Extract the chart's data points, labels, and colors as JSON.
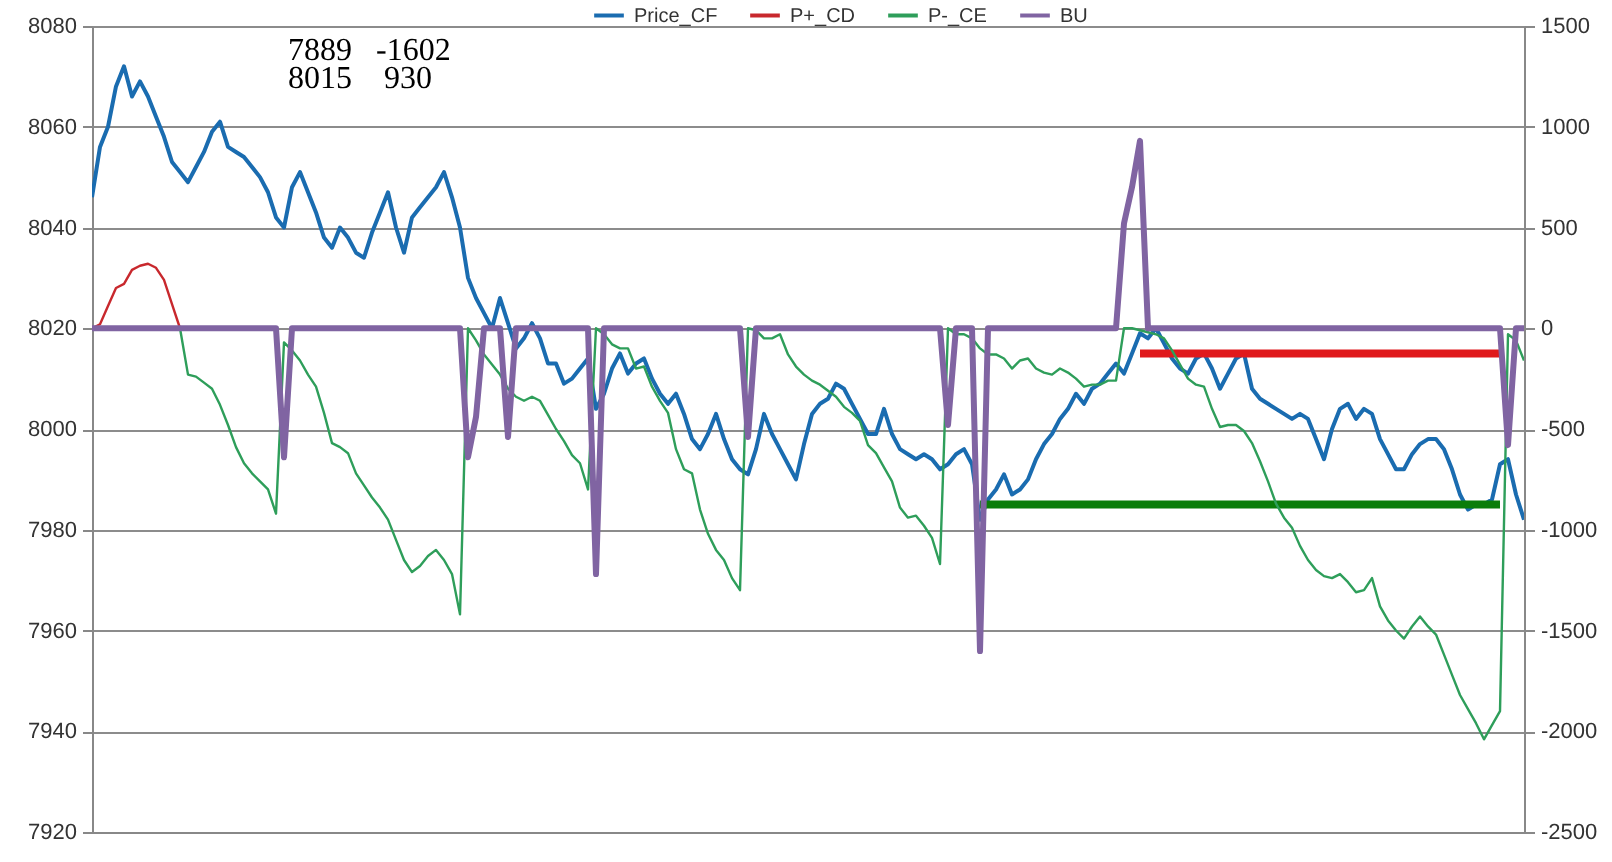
{
  "chart_data": {
    "type": "line",
    "categories": [
      null,
      null,
      null,
      null,
      null,
      null,
      null,
      null,
      null,
      null,
      null,
      null,
      null,
      null,
      null,
      null,
      null,
      null,
      null,
      null,
      null,
      null,
      null,
      null,
      null,
      null,
      null,
      null,
      null,
      null,
      null,
      null,
      null,
      null,
      null,
      null,
      null,
      null,
      null,
      null,
      null,
      null,
      null,
      null,
      null,
      null,
      null,
      null,
      null,
      null,
      null,
      null,
      null,
      null,
      null,
      null,
      null,
      null,
      null,
      null,
      null,
      null,
      null,
      null,
      null,
      null,
      null,
      null,
      null,
      null,
      null,
      null,
      null,
      null,
      null,
      null,
      null,
      null,
      null,
      null,
      null,
      null,
      null,
      null,
      null,
      null,
      null,
      null,
      null,
      null,
      null,
      null,
      null,
      null,
      null,
      null,
      null,
      null,
      null,
      null,
      null,
      null,
      null,
      null,
      null,
      null,
      null,
      null,
      null,
      null,
      null,
      null,
      null,
      null,
      null,
      null,
      null,
      null,
      null,
      null,
      null,
      null,
      null,
      null,
      null,
      null,
      null,
      null,
      null,
      null,
      null,
      null,
      null,
      null,
      null,
      null,
      null,
      null,
      null,
      null,
      null,
      null,
      null,
      null,
      null,
      null,
      null,
      null,
      null,
      null,
      null,
      null,
      null,
      null,
      null,
      null,
      null,
      null,
      null,
      null,
      null,
      null,
      null,
      null,
      null,
      null,
      null,
      null,
      null,
      null,
      null,
      null,
      null,
      null,
      null,
      null,
      null,
      null,
      null,
      null
    ],
    "series": [
      {
        "name": "Price_CF",
        "color": "#1a6cb0",
        "values": [
          8046,
          8056,
          8060,
          8068,
          8072,
          8066,
          8069,
          8066,
          8062,
          8058,
          8053,
          8051,
          8049,
          8052,
          8055,
          8059,
          8061,
          8056,
          8055,
          8054,
          8052,
          8050,
          8047,
          8042,
          8040,
          8048,
          8051,
          8047,
          8043,
          8038,
          8036,
          8040,
          8038,
          8035,
          8034,
          8039,
          8043,
          8047,
          8040,
          8035,
          8042,
          8044,
          8046,
          8048,
          8051,
          8046,
          8040,
          8030,
          8026,
          8023,
          8020,
          8026,
          8021,
          8016,
          8018,
          8021,
          8018,
          8013,
          8013,
          8009,
          8010,
          8012,
          8014,
          8004,
          8007,
          8012,
          8015,
          8011,
          8013,
          8014,
          8010,
          8007,
          8005,
          8007,
          8003,
          7998,
          7996,
          7999,
          8003,
          7998,
          7994,
          7992,
          7991,
          7996,
          8003,
          7999,
          7996,
          7993,
          7990,
          7997,
          8003,
          8005,
          8006,
          8009,
          8008,
          8005,
          8002,
          7999,
          7999,
          8004,
          7999,
          7996,
          7995,
          7994,
          7995,
          7994,
          7992,
          7993,
          7995,
          7996,
          7993,
          7982,
          7986,
          7988,
          7991,
          7987,
          7988,
          7990,
          7994,
          7997,
          7999,
          8002,
          8004,
          8007,
          8005,
          8008,
          8009,
          8011,
          8013,
          8011,
          8015,
          8019,
          8018,
          8020,
          8017,
          8014,
          8012,
          8011,
          8014,
          8015,
          8012,
          8008,
          8011,
          8014,
          8015,
          8008,
          8006,
          8005,
          8004,
          8003,
          8002,
          8003,
          8002,
          7998,
          7994,
          8000,
          8004,
          8005,
          8002,
          8004,
          8003,
          7998,
          7995,
          7992,
          7992,
          7995,
          7997,
          7998,
          7998,
          7996,
          7992,
          7987,
          7984,
          7985,
          7985,
          7986,
          7993,
          7994,
          7987,
          7982
        ]
      },
      {
        "name": "P+_CD",
        "color": "#c8282d",
        "axis": "y2",
        "values": [
          0,
          20,
          110,
          200,
          220,
          290,
          310,
          320,
          300,
          240,
          120,
          0,
          null,
          null,
          null,
          null,
          null,
          null,
          null,
          null,
          null,
          null,
          null,
          null,
          null,
          null,
          null,
          null,
          null,
          null,
          null,
          null,
          null,
          null,
          null,
          null,
          null,
          null,
          null,
          null,
          null,
          null,
          null,
          null,
          null,
          null,
          null,
          null,
          null,
          null,
          null,
          null,
          null,
          null,
          null,
          null,
          null,
          null,
          null,
          null,
          null,
          null,
          null,
          null,
          null,
          null,
          null,
          null,
          null,
          null,
          null,
          null,
          null,
          null,
          null,
          null,
          null,
          null,
          null,
          null,
          null,
          null,
          null,
          null,
          null,
          null,
          null,
          null,
          null,
          null,
          null,
          null,
          null,
          null,
          null,
          null,
          null,
          null,
          null,
          null,
          null,
          null,
          null,
          null,
          null,
          null,
          null,
          null,
          null,
          null,
          null,
          null,
          null,
          null,
          null,
          null,
          null,
          null,
          null,
          null,
          null,
          null,
          null,
          null,
          null,
          null,
          null,
          null,
          null,
          null,
          null,
          null,
          null,
          null,
          null,
          null,
          null,
          null,
          null,
          null,
          null,
          null,
          null,
          null,
          null,
          null,
          null,
          null,
          null,
          null,
          null,
          null,
          null,
          null,
          null,
          null,
          null,
          null,
          null,
          null,
          null,
          null,
          null,
          null,
          null,
          null,
          null,
          null,
          null,
          null,
          null,
          null,
          null,
          null,
          null,
          null,
          null,
          null,
          null,
          null
        ]
      },
      {
        "name": "P-_CE",
        "color": "#2e9e5a",
        "axis": "y2",
        "values": [
          null,
          null,
          null,
          null,
          null,
          null,
          null,
          null,
          null,
          null,
          null,
          0,
          -230,
          -240,
          -270,
          -300,
          -380,
          -480,
          -590,
          -670,
          -720,
          -760,
          -800,
          -920,
          -70,
          -110,
          -160,
          -230,
          -290,
          -420,
          -570,
          -590,
          -620,
          -720,
          -780,
          -840,
          -890,
          -950,
          -1050,
          -1150,
          -1210,
          -1180,
          -1130,
          -1100,
          -1150,
          -1220,
          -1420,
          0,
          -60,
          -130,
          -180,
          -230,
          -300,
          -340,
          -360,
          -340,
          -360,
          -430,
          -500,
          -560,
          -630,
          -670,
          -800,
          0,
          -30,
          -80,
          -100,
          -100,
          -200,
          -190,
          -290,
          -360,
          -420,
          -600,
          -700,
          -720,
          -900,
          -1020,
          -1100,
          -1150,
          -1240,
          -1300,
          0,
          -10,
          -50,
          -50,
          -30,
          -130,
          -190,
          -230,
          -260,
          -280,
          -310,
          -340,
          -390,
          -420,
          -460,
          -580,
          -620,
          -690,
          -760,
          -890,
          -940,
          -930,
          -980,
          -1040,
          -1170,
          0,
          -30,
          -30,
          -50,
          -100,
          -130,
          -130,
          -150,
          -200,
          -160,
          -150,
          -200,
          -220,
          -230,
          -200,
          -220,
          -250,
          -290,
          -280,
          -280,
          -260,
          -260,
          0,
          0,
          -10,
          -20,
          -30,
          -50,
          -110,
          -180,
          -250,
          -280,
          -290,
          -400,
          -490,
          -480,
          -480,
          -510,
          -570,
          -660,
          -760,
          -870,
          -940,
          -990,
          -1080,
          -1150,
          -1200,
          -1230,
          -1240,
          -1220,
          -1260,
          -1310,
          -1300,
          -1240,
          -1380,
          -1450,
          -1500,
          -1540,
          -1480,
          -1430,
          -1480,
          -1520,
          -1620,
          -1720,
          -1820,
          -1890,
          -1960,
          -2040,
          -1970,
          -1900,
          -30,
          -60,
          -160
        ]
      },
      {
        "name": "BU",
        "color": "#8064a2",
        "axis": "y2",
        "values": [
          0,
          0,
          0,
          0,
          0,
          0,
          0,
          0,
          0,
          0,
          0,
          0,
          0,
          0,
          0,
          0,
          0,
          0,
          0,
          0,
          0,
          0,
          0,
          0,
          -640,
          0,
          0,
          0,
          0,
          0,
          0,
          0,
          0,
          0,
          0,
          0,
          0,
          0,
          0,
          0,
          0,
          0,
          0,
          0,
          0,
          0,
          0,
          -640,
          -440,
          0,
          0,
          0,
          -540,
          0,
          0,
          0,
          0,
          0,
          0,
          0,
          0,
          0,
          0,
          -1220,
          0,
          0,
          0,
          0,
          0,
          0,
          0,
          0,
          0,
          0,
          0,
          0,
          0,
          0,
          0,
          0,
          0,
          0,
          -540,
          0,
          0,
          0,
          0,
          0,
          0,
          0,
          0,
          0,
          0,
          0,
          0,
          0,
          0,
          0,
          0,
          0,
          0,
          0,
          0,
          0,
          0,
          0,
          0,
          -480,
          0,
          0,
          0,
          -1602,
          0,
          0,
          0,
          0,
          0,
          0,
          0,
          0,
          0,
          0,
          0,
          0,
          0,
          0,
          0,
          0,
          0,
          520,
          700,
          930,
          0,
          0,
          0,
          0,
          0,
          0,
          0,
          0,
          0,
          0,
          0,
          0,
          0,
          0,
          0,
          0,
          0,
          0,
          0,
          0,
          0,
          0,
          0,
          0,
          0,
          0,
          0,
          0,
          0,
          0,
          0,
          0,
          0,
          0,
          0,
          0,
          0,
          0,
          0,
          0,
          0,
          0,
          0,
          0,
          0,
          -580,
          0,
          0
        ]
      },
      {
        "color": "#e0191c",
        "values": [
          null,
          null,
          null,
          null,
          null,
          null,
          null,
          null,
          null,
          null,
          null,
          null,
          null,
          null,
          null,
          null,
          null,
          null,
          null,
          null,
          null,
          null,
          null,
          null,
          null,
          null,
          null,
          null,
          null,
          null,
          null,
          null,
          null,
          null,
          null,
          null,
          null,
          null,
          null,
          null,
          null,
          null,
          null,
          null,
          null,
          null,
          null,
          null,
          null,
          null,
          null,
          null,
          null,
          null,
          null,
          null,
          null,
          null,
          null,
          null,
          null,
          null,
          null,
          null,
          null,
          null,
          null,
          null,
          null,
          null,
          null,
          null,
          null,
          null,
          null,
          null,
          null,
          null,
          null,
          null,
          null,
          null,
          null,
          null,
          null,
          null,
          null,
          null,
          null,
          null,
          null,
          null,
          null,
          null,
          null,
          null,
          null,
          null,
          null,
          null,
          null,
          null,
          null,
          null,
          null,
          null,
          null,
          null,
          null,
          null,
          null,
          null,
          null,
          null,
          null,
          null,
          null,
          null,
          null,
          null,
          null,
          null,
          null,
          null,
          null,
          null,
          null,
          null,
          null,
          null,
          null,
          8015,
          8015,
          8015,
          8015,
          8015,
          8015,
          8015,
          8015,
          8015,
          8015,
          8015,
          8015,
          8015,
          8015,
          8015,
          8015,
          8015,
          8015,
          8015,
          8015,
          8015,
          8015,
          8015,
          8015,
          8015,
          8015,
          8015,
          8015,
          8015,
          8015,
          8015,
          8015,
          8015,
          8015,
          8015,
          8015,
          8015,
          8015,
          8015,
          8015,
          8015,
          8015,
          8015,
          8015,
          8015,
          8015,
          null,
          null,
          null
        ]
      },
      {
        "color": "#0a7d0a",
        "values": [
          null,
          null,
          null,
          null,
          null,
          null,
          null,
          null,
          null,
          null,
          null,
          null,
          null,
          null,
          null,
          null,
          null,
          null,
          null,
          null,
          null,
          null,
          null,
          null,
          null,
          null,
          null,
          null,
          null,
          null,
          null,
          null,
          null,
          null,
          null,
          null,
          null,
          null,
          null,
          null,
          null,
          null,
          null,
          null,
          null,
          null,
          null,
          null,
          null,
          null,
          null,
          null,
          null,
          null,
          null,
          null,
          null,
          null,
          null,
          null,
          null,
          null,
          null,
          null,
          null,
          null,
          null,
          null,
          null,
          null,
          null,
          null,
          null,
          null,
          null,
          null,
          null,
          null,
          null,
          null,
          null,
          null,
          null,
          null,
          null,
          null,
          null,
          null,
          null,
          null,
          null,
          null,
          null,
          null,
          null,
          null,
          null,
          null,
          null,
          null,
          null,
          null,
          null,
          null,
          null,
          null,
          null,
          null,
          null,
          null,
          null,
          7985,
          7985,
          7985,
          7985,
          7985,
          7985,
          7985,
          7985,
          7985,
          7985,
          7985,
          7985,
          7985,
          7985,
          7985,
          7985,
          7985,
          7985,
          7985,
          7985,
          7985,
          7985,
          7985,
          7985,
          7985,
          7985,
          7985,
          7985,
          7985,
          7985,
          7985,
          7985,
          7985,
          7985,
          7985,
          7985,
          7985,
          7985,
          7985,
          7985,
          7985,
          7985,
          7985,
          7985,
          7985,
          7985,
          7985,
          7985,
          7985,
          7985,
          7985,
          7985,
          7985,
          7985,
          7985,
          7985,
          7985,
          7985,
          7985,
          7985,
          7985,
          7985,
          7985,
          7985,
          7985,
          7985,
          null,
          null,
          null
        ]
      }
    ],
    "ylim": [
      7920,
      8080
    ],
    "yticks": [
      7920,
      7940,
      7960,
      7980,
      8000,
      8020,
      8040,
      8060,
      8080
    ],
    "y2lim": [
      -2500,
      1500
    ],
    "y2ticks": [
      -2500,
      -2000,
      -1500,
      -1000,
      -500,
      0,
      500,
      1000,
      1500
    ],
    "grid": "y",
    "legend": "top",
    "annotations": [
      "7889   -1602",
      "8015    930"
    ]
  }
}
